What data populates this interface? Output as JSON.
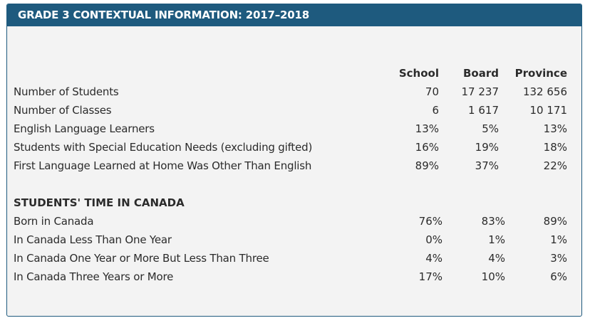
{
  "title": "GRADE 3 CONTEXTUAL INFORMATION: 2017–2018",
  "columns": [
    "School",
    "Board",
    "Province"
  ],
  "rows": [
    {
      "label": "Number of Students",
      "school": "70",
      "board": "17 237",
      "province": "132 656"
    },
    {
      "label": "Number of Classes",
      "school": "6",
      "board": "1 617",
      "province": "10 171"
    },
    {
      "label": "English Language Learners",
      "school": "13%",
      "board": "5%",
      "province": "13%"
    },
    {
      "label": "Students with Special Education Needs (excluding gifted)",
      "school": "16%",
      "board": "19%",
      "province": "18%"
    },
    {
      "label": "First Language Learned at Home Was Other Than English",
      "school": "89%",
      "board": "37%",
      "province": "22%"
    }
  ],
  "section_title": "STUDENTS' TIME IN CANADA",
  "time_rows": [
    {
      "label": "Born in Canada",
      "school": "76%",
      "board": "83%",
      "province": "89%"
    },
    {
      "label": "In Canada Less Than One Year",
      "school": "0%",
      "board": "1%",
      "province": "1%"
    },
    {
      "label": "In Canada One Year or More But Less Than Three",
      "school": "4%",
      "board": "4%",
      "province": "3%"
    },
    {
      "label": "In Canada Three Years or More",
      "school": "17%",
      "board": "10%",
      "province": "6%"
    }
  ]
}
